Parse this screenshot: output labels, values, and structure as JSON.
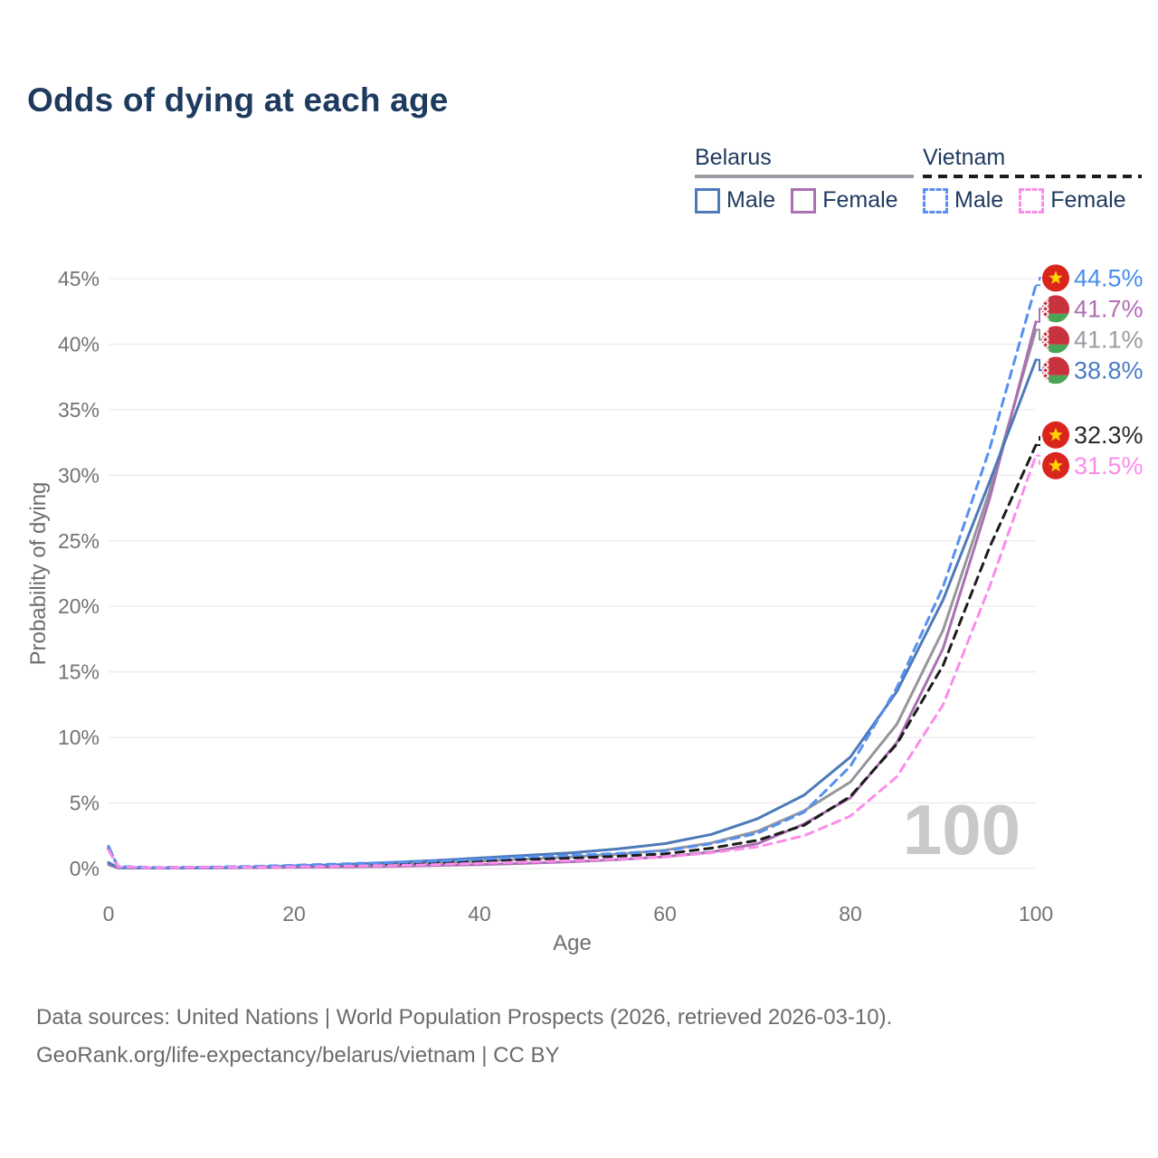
{
  "title": "Odds of dying at each age",
  "watermark": "100",
  "footer": {
    "line1": "Data sources: United Nations | World Population Prospects (2026, retrieved 2026-03-10).",
    "line2": "GeoRank.org/life-expectancy/belarus/vietnam | CC BY"
  },
  "legend": {
    "groups": [
      {
        "country": "Belarus",
        "line_style": "solid",
        "items": [
          {
            "label": "Male",
            "color": "#4d7ab8",
            "style": "solid"
          },
          {
            "label": "Female",
            "color": "#aa70b2",
            "style": "solid"
          }
        ]
      },
      {
        "country": "Vietnam",
        "line_style": "dashed",
        "items": [
          {
            "label": "Male",
            "color": "#5590f0",
            "style": "dashed"
          },
          {
            "label": "Female",
            "color": "#fc8cec",
            "style": "dashed"
          }
        ]
      }
    ]
  },
  "chart_data": {
    "type": "line",
    "title": "Odds of dying at each age",
    "xlabel": "Age",
    "ylabel": "Probability of dying",
    "xlim": [
      0,
      100
    ],
    "ylim": [
      0,
      45
    ],
    "x_ticks": [
      0,
      20,
      40,
      60,
      80,
      100
    ],
    "y_ticks": [
      0,
      5,
      10,
      15,
      20,
      25,
      30,
      35,
      40,
      45
    ],
    "y_tick_suffix": "%",
    "grid": "horizontal-only",
    "legend_position": "top-right",
    "x": [
      0,
      1,
      5,
      10,
      15,
      20,
      25,
      30,
      35,
      40,
      45,
      50,
      55,
      60,
      65,
      70,
      75,
      80,
      85,
      90,
      95,
      100
    ],
    "series": [
      {
        "name": "Belarus Male",
        "country": "Belarus",
        "sex": "Male",
        "line_style": "solid",
        "color": "#4d7ab8",
        "label_color": "#4a7cc4",
        "end_value": 38.8,
        "end_label": "38.8%",
        "flag": "belarus",
        "values": [
          0.45,
          0.06,
          0.04,
          0.05,
          0.1,
          0.2,
          0.3,
          0.45,
          0.6,
          0.8,
          1.0,
          1.2,
          1.5,
          1.9,
          2.6,
          3.8,
          5.6,
          8.5,
          13.5,
          20.5,
          29.5,
          38.8
        ]
      },
      {
        "name": "Belarus Female",
        "country": "Belarus",
        "sex": "Female",
        "line_style": "solid",
        "color": "#aa70b2",
        "label_color": "#b06fb5",
        "end_value": 41.7,
        "end_label": "41.7%",
        "flag": "belarus",
        "values": [
          0.3,
          0.04,
          0.03,
          0.04,
          0.06,
          0.08,
          0.11,
          0.16,
          0.22,
          0.3,
          0.4,
          0.52,
          0.68,
          0.9,
          1.25,
          1.9,
          3.4,
          5.4,
          9.6,
          16.8,
          28.2,
          41.7
        ]
      },
      {
        "name": "Belarus",
        "country": "Belarus",
        "sex": "Both",
        "line_style": "solid",
        "color": "#95959d",
        "label_color": "#9b9ba3",
        "end_value": 41.1,
        "end_label": "41.1%",
        "flag": "belarus",
        "values": [
          0.38,
          0.05,
          0.035,
          0.045,
          0.08,
          0.14,
          0.21,
          0.31,
          0.42,
          0.56,
          0.72,
          0.88,
          1.1,
          1.4,
          1.95,
          2.85,
          4.4,
          6.6,
          11.0,
          18.2,
          28.8,
          41.1
        ]
      },
      {
        "name": "Vietnam Male",
        "country": "Vietnam",
        "sex": "Male",
        "line_style": "dashed",
        "color": "#5590f0",
        "label_color": "#4a8cee",
        "end_value": 44.5,
        "end_label": "44.5%",
        "flag": "vietnam",
        "values": [
          1.7,
          0.15,
          0.08,
          0.1,
          0.15,
          0.25,
          0.35,
          0.45,
          0.55,
          0.7,
          0.88,
          1.0,
          1.15,
          1.35,
          1.9,
          2.7,
          4.3,
          7.8,
          13.8,
          21.5,
          32.0,
          44.5
        ]
      },
      {
        "name": "Vietnam Female",
        "country": "Vietnam",
        "sex": "Female",
        "line_style": "dashed",
        "color": "#fc8cec",
        "label_color": "#fc8cec",
        "end_value": 31.5,
        "end_label": "31.5%",
        "flag": "vietnam",
        "values": [
          1.4,
          0.12,
          0.06,
          0.08,
          0.1,
          0.13,
          0.17,
          0.22,
          0.3,
          0.4,
          0.5,
          0.6,
          0.72,
          0.88,
          1.2,
          1.65,
          2.5,
          4.0,
          7.0,
          12.5,
          21.5,
          31.5
        ]
      },
      {
        "name": "Vietnam",
        "country": "Vietnam",
        "sex": "Both",
        "line_style": "dashed",
        "color": "#1c1c1c",
        "label_color": "#2a2a2a",
        "end_value": 32.3,
        "end_label": "32.3%",
        "flag": "vietnam",
        "values": [
          1.55,
          0.14,
          0.07,
          0.09,
          0.13,
          0.19,
          0.26,
          0.34,
          0.43,
          0.55,
          0.69,
          0.8,
          0.94,
          1.12,
          1.55,
          2.15,
          3.3,
          5.5,
          9.5,
          15.5,
          24.5,
          32.3
        ]
      }
    ],
    "colors": {
      "grid": "#ececec",
      "tick_text": "#737373",
      "axis_title_text": "#6e6e6e",
      "watermark": "#c9c9c9",
      "vietnam_flag_red": "#da251d",
      "vietnam_flag_star": "#ffd400",
      "belarus_flag_red": "#c8313e",
      "belarus_flag_green": "#4aa657"
    }
  }
}
